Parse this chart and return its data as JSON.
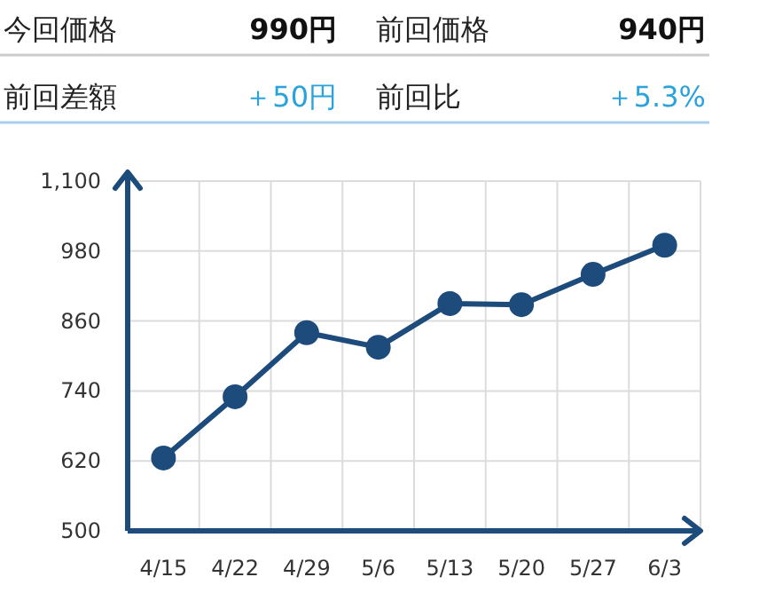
{
  "chart_data": [
    {
      "type": "other",
      "annotations": [
        "今回価格",
        "990円",
        "前回価格",
        "940円",
        "前回差額",
        "＋50円",
        "前回比",
        "＋5.3%"
      ]
    },
    {
      "type": "line",
      "categories": [
        "4/15",
        "4/22",
        "4/29",
        "5/6",
        "5/13",
        "5/20",
        "5/27",
        "6/3"
      ],
      "series": [
        {
          "color": "#1d4b7c",
          "values": [
            625,
            730,
            840,
            815,
            890,
            888,
            940,
            990
          ]
        }
      ],
      "ylim": [
        500,
        1100
      ],
      "yticks": [
        500,
        620,
        740,
        860,
        980,
        {
          "value": 1100,
          "label": "1,100"
        }
      ],
      "grid": true,
      "marker": "circle",
      "line_style": "solid"
    }
  ]
}
